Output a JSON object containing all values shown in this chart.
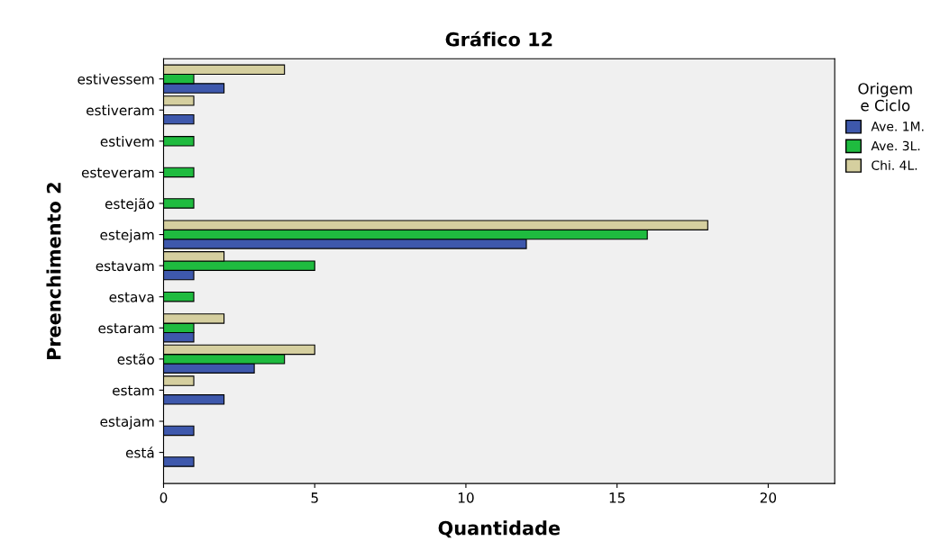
{
  "chart_data": {
    "type": "bar",
    "orientation": "horizontal",
    "title": "Gráfico 12",
    "xlabel": "Quantidade",
    "ylabel": "Preenchimento 2",
    "legend_title": "Origem\ne Ciclo",
    "legend": "right",
    "categories": [
      "estivessem",
      "estiveram",
      "estivem",
      "esteveram",
      "estejão",
      "estejam",
      "estavam",
      "estava",
      "estaram",
      "estão",
      "estam",
      "estajam",
      "está"
    ],
    "series": [
      {
        "name": "Ave. 1M.",
        "color": "#3e58ac",
        "values": [
          2,
          1,
          null,
          null,
          null,
          12,
          1,
          null,
          1,
          3,
          2,
          1,
          1
        ]
      },
      {
        "name": "Ave. 3L.",
        "color": "#1fbb3f",
        "values": [
          1,
          null,
          1,
          1,
          1,
          16,
          5,
          1,
          1,
          4,
          null,
          null,
          null
        ]
      },
      {
        "name": "Chi. 4L.",
        "color": "#d5cf9f",
        "values": [
          4,
          1,
          null,
          null,
          null,
          18,
          2,
          null,
          2,
          5,
          1,
          null,
          null
        ]
      }
    ],
    "xlim": [
      0,
      22.2
    ],
    "xticks": [
      0,
      5,
      10,
      15,
      20
    ],
    "grid": false
  }
}
